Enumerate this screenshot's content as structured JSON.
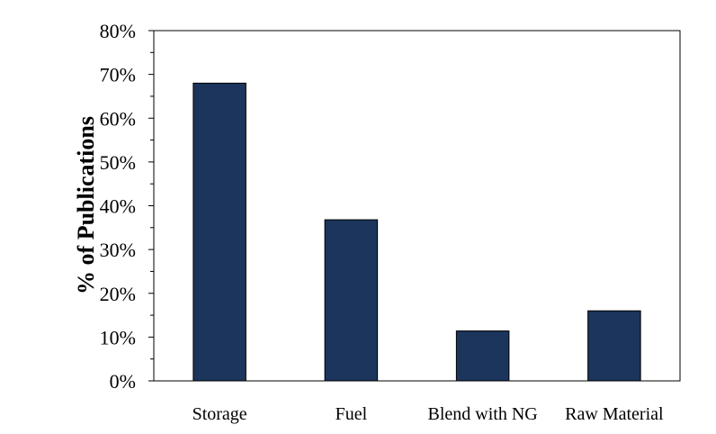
{
  "chart_data": {
    "type": "bar",
    "title": "",
    "xlabel": "",
    "ylabel": "% of Publications",
    "categories": [
      "Storage",
      "Fuel",
      "Blend with NG",
      "Raw  Material"
    ],
    "values": [
      0.68,
      0.368,
      0.114,
      0.16
    ],
    "ylim": [
      0,
      0.8
    ],
    "yticks": [
      {
        "value": 0.0,
        "label": "0%"
      },
      {
        "value": 0.1,
        "label": "10%"
      },
      {
        "value": 0.2,
        "label": "20%"
      },
      {
        "value": 0.3,
        "label": "30%"
      },
      {
        "value": 0.4,
        "label": "40%"
      },
      {
        "value": 0.5,
        "label": "50%"
      },
      {
        "value": 0.6,
        "label": "60%"
      },
      {
        "value": 0.7,
        "label": "70%"
      },
      {
        "value": 0.8,
        "label": "80%"
      }
    ],
    "grid": false,
    "bar_color": "#1b355c"
  }
}
